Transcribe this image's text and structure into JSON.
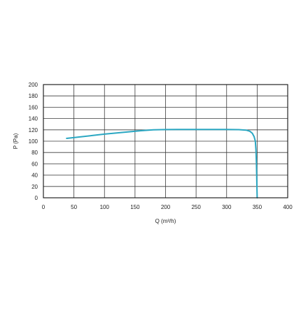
{
  "chart_data": {
    "type": "line",
    "xlabel": "Q (m³/h)",
    "ylabel": "P (Pa)",
    "xlim": [
      0,
      400
    ],
    "ylim": [
      0,
      200
    ],
    "x_ticks": [
      0,
      50,
      100,
      150,
      200,
      250,
      300,
      350,
      400
    ],
    "y_ticks": [
      0,
      20,
      40,
      60,
      80,
      100,
      120,
      140,
      160,
      180,
      200
    ],
    "grid": true,
    "series": [
      {
        "color": "#2aa7c2",
        "x": [
          38,
          60,
          80,
          100,
          120,
          140,
          160,
          180,
          200,
          220,
          240,
          260,
          280,
          300,
          320,
          332,
          338,
          342,
          345,
          347,
          348,
          348.8,
          349.3,
          349.7,
          350
        ],
        "y": [
          105,
          107.5,
          110,
          112.5,
          114.5,
          116.5,
          118.5,
          120,
          120.5,
          120.7,
          120.7,
          120.7,
          120.7,
          120.6,
          120.3,
          119.5,
          117.5,
          114,
          108,
          100,
          85,
          60,
          35,
          15,
          0
        ]
      }
    ]
  }
}
